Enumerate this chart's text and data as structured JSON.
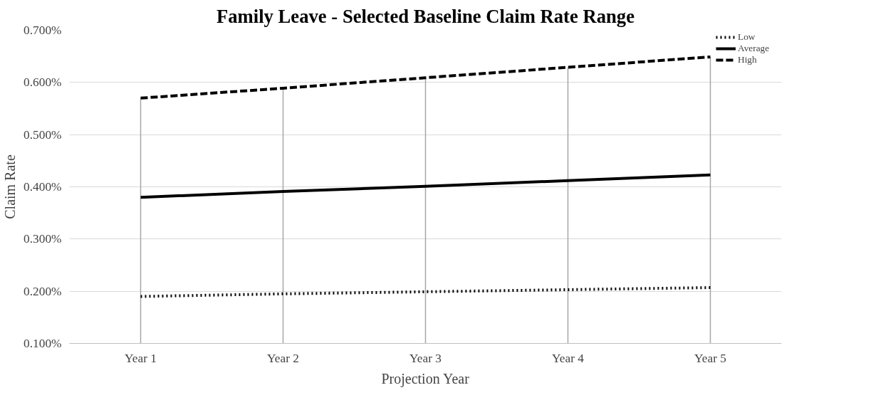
{
  "chart_data": {
    "type": "line",
    "title": "Family Leave - Selected Baseline Claim Rate Range",
    "xlabel": "Projection Year",
    "ylabel": "Claim Rate",
    "categories": [
      "Year 1",
      "Year 2",
      "Year 3",
      "Year 4",
      "Year 5"
    ],
    "series": [
      {
        "name": "Low",
        "color": "#000000",
        "line_style": "dotted",
        "values": [
          0.19,
          0.195,
          0.199,
          0.203,
          0.207
        ]
      },
      {
        "name": "Average",
        "color": "#000000",
        "line_style": "solid",
        "values": [
          0.38,
          0.391,
          0.401,
          0.412,
          0.423
        ]
      },
      {
        "name": "High",
        "color": "#000000",
        "line_style": "dashed",
        "values": [
          0.57,
          0.589,
          0.609,
          0.629,
          0.649
        ]
      }
    ],
    "ylim": [
      0.1,
      0.7
    ],
    "yticks": [
      {
        "value": 0.1,
        "label": "0.100%"
      },
      {
        "value": 0.2,
        "label": "0.200%"
      },
      {
        "value": 0.3,
        "label": "0.300%"
      },
      {
        "value": 0.4,
        "label": "0.400%"
      },
      {
        "value": 0.5,
        "label": "0.500%"
      },
      {
        "value": 0.6,
        "label": "0.600%"
      },
      {
        "value": 0.7,
        "label": "0.700%"
      }
    ],
    "grid": true,
    "legend": "top right",
    "marker": "none"
  }
}
